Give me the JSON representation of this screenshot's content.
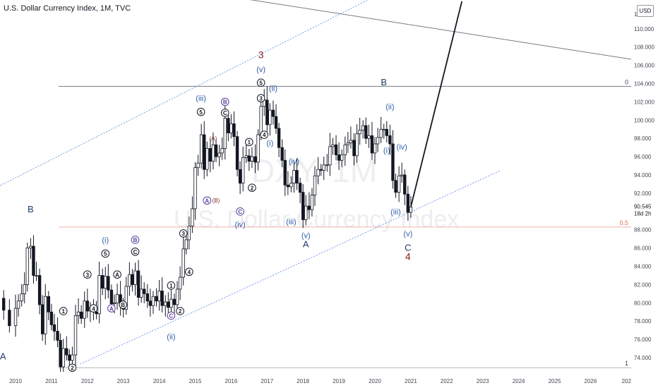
{
  "header": {
    "title": "U.S. Dollar Currency Index, 1M, TVC",
    "currency": "USD"
  },
  "watermark": {
    "symbol": "DXY, 1M",
    "name": "U.S. Dollar Currency Index"
  },
  "colors": {
    "up": "#131722",
    "wave": "#2f5ea8",
    "major": "#8b1a1a",
    "channel": "#6f9be8",
    "fib_zero": "#787b86",
    "fib_half": "#f0b3a8",
    "axis_text": "#434651",
    "price_tag": "#131722"
  },
  "chart_data": {
    "type": "candlestick",
    "x_axis": {
      "ticks": [
        "2010",
        "2011",
        "2012",
        "2013",
        "2014",
        "2015",
        "2016",
        "2017",
        "2018",
        "2019",
        "2020",
        "2021",
        "2022",
        "2023",
        "2024",
        "2025",
        "2026",
        "202"
      ],
      "range": [
        2010,
        2027
      ]
    },
    "y_axis": {
      "ticks": [
        "74.000",
        "76.000",
        "78.000",
        "80.000",
        "82.000",
        "84.000",
        "86.000",
        "88.000",
        "90.545",
        "92.000",
        "94.000",
        "96.000",
        "98.000",
        "100.000",
        "102.000",
        "104.000",
        "106.000",
        "108.000",
        "110.000"
      ],
      "range": [
        73,
        113
      ],
      "current_price": "90.545",
      "current_tag": "18d 2h",
      "top_tick": "1"
    },
    "fib_levels": [
      {
        "label": "0",
        "value": 103.7
      },
      {
        "label": "0.5",
        "value": 88.3
      },
      {
        "label": "1",
        "value": 72.9
      }
    ],
    "closes": [
      [
        2009.5,
        80.5
      ],
      [
        2009.67,
        79.2
      ],
      [
        2009.83,
        77.5
      ],
      [
        2010.0,
        79.4
      ],
      [
        2010.08,
        80.2
      ],
      [
        2010.17,
        81.0
      ],
      [
        2010.25,
        82.0
      ],
      [
        2010.33,
        86.0
      ],
      [
        2010.42,
        86.2
      ],
      [
        2010.5,
        83.0
      ],
      [
        2010.58,
        83.0
      ],
      [
        2010.67,
        79.8
      ],
      [
        2010.75,
        76.6
      ],
      [
        2010.83,
        80.7
      ],
      [
        2010.92,
        79.0
      ],
      [
        2011.0,
        77.6
      ],
      [
        2011.08,
        76.9
      ],
      [
        2011.17,
        75.9
      ],
      [
        2011.25,
        73.0
      ],
      [
        2011.33,
        75.0
      ],
      [
        2011.42,
        74.3
      ],
      [
        2011.5,
        73.7
      ],
      [
        2011.58,
        74.3
      ],
      [
        2011.67,
        78.6
      ],
      [
        2011.75,
        79.0
      ],
      [
        2011.83,
        78.3
      ],
      [
        2011.92,
        80.2
      ],
      [
        2012.0,
        79.1
      ],
      [
        2012.08,
        79.5
      ],
      [
        2012.17,
        79.0
      ],
      [
        2012.25,
        78.8
      ],
      [
        2012.33,
        83.0
      ],
      [
        2012.42,
        81.6
      ],
      [
        2012.5,
        82.9
      ],
      [
        2012.58,
        81.4
      ],
      [
        2012.67,
        79.9
      ],
      [
        2012.75,
        80.0
      ],
      [
        2012.83,
        80.9
      ],
      [
        2012.92,
        79.8
      ],
      [
        2013.0,
        79.3
      ],
      [
        2013.08,
        81.8
      ],
      [
        2013.17,
        83.1
      ],
      [
        2013.25,
        82.0
      ],
      [
        2013.33,
        83.5
      ],
      [
        2013.42,
        80.6
      ],
      [
        2013.5,
        81.5
      ],
      [
        2013.58,
        81.0
      ],
      [
        2013.67,
        80.2
      ],
      [
        2013.75,
        79.7
      ],
      [
        2013.83,
        80.7
      ],
      [
        2013.92,
        80.2
      ],
      [
        2014.0,
        81.3
      ],
      [
        2014.08,
        79.7
      ],
      [
        2014.17,
        80.1
      ],
      [
        2014.25,
        79.5
      ],
      [
        2014.33,
        80.4
      ],
      [
        2014.42,
        79.8
      ],
      [
        2014.5,
        81.5
      ],
      [
        2014.58,
        82.8
      ],
      [
        2014.67,
        85.9
      ],
      [
        2014.75,
        86.9
      ],
      [
        2014.83,
        88.4
      ],
      [
        2014.92,
        90.3
      ],
      [
        2015.0,
        94.8
      ],
      [
        2015.08,
        95.3
      ],
      [
        2015.17,
        98.4
      ],
      [
        2015.25,
        94.6
      ],
      [
        2015.33,
        96.9
      ],
      [
        2015.42,
        95.5
      ],
      [
        2015.5,
        97.3
      ],
      [
        2015.58,
        96.0
      ],
      [
        2015.67,
        96.4
      ],
      [
        2015.75,
        96.9
      ],
      [
        2015.83,
        100.2
      ],
      [
        2015.92,
        98.6
      ],
      [
        2016.0,
        99.6
      ],
      [
        2016.08,
        98.2
      ],
      [
        2016.17,
        94.6
      ],
      [
        2016.25,
        93.1
      ],
      [
        2016.33,
        95.9
      ],
      [
        2016.42,
        96.1
      ],
      [
        2016.5,
        95.5
      ],
      [
        2016.58,
        96.0
      ],
      [
        2016.67,
        95.4
      ],
      [
        2016.75,
        98.4
      ],
      [
        2016.83,
        101.5
      ],
      [
        2016.92,
        102.2
      ],
      [
        2017.0,
        99.5
      ],
      [
        2017.08,
        101.1
      ],
      [
        2017.17,
        100.4
      ],
      [
        2017.25,
        99.1
      ],
      [
        2017.33,
        97.0
      ],
      [
        2017.42,
        95.6
      ],
      [
        2017.5,
        92.9
      ],
      [
        2017.58,
        92.7
      ],
      [
        2017.67,
        93.1
      ],
      [
        2017.75,
        94.5
      ],
      [
        2017.83,
        93.1
      ],
      [
        2017.92,
        92.1
      ],
      [
        2018.0,
        89.1
      ],
      [
        2018.08,
        90.6
      ],
      [
        2018.17,
        90.2
      ],
      [
        2018.25,
        91.8
      ],
      [
        2018.33,
        93.9
      ],
      [
        2018.42,
        94.6
      ],
      [
        2018.5,
        94.5
      ],
      [
        2018.58,
        95.1
      ],
      [
        2018.67,
        95.1
      ],
      [
        2018.75,
        97.1
      ],
      [
        2018.83,
        97.3
      ],
      [
        2018.92,
        96.2
      ],
      [
        2019.0,
        95.6
      ],
      [
        2019.08,
        96.2
      ],
      [
        2019.17,
        97.3
      ],
      [
        2019.25,
        97.5
      ],
      [
        2019.33,
        97.8
      ],
      [
        2019.42,
        96.1
      ],
      [
        2019.5,
        98.5
      ],
      [
        2019.58,
        98.9
      ],
      [
        2019.67,
        99.4
      ],
      [
        2019.75,
        98.0
      ],
      [
        2019.83,
        98.3
      ],
      [
        2019.92,
        96.4
      ],
      [
        2020.0,
        97.4
      ],
      [
        2020.08,
        98.1
      ],
      [
        2020.17,
        99.0
      ],
      [
        2020.25,
        99.0
      ],
      [
        2020.33,
        98.3
      ],
      [
        2020.42,
        97.4
      ],
      [
        2020.5,
        93.4
      ],
      [
        2020.58,
        92.1
      ],
      [
        2020.67,
        93.9
      ],
      [
        2020.75,
        94.0
      ],
      [
        2020.83,
        91.9
      ],
      [
        2020.92,
        89.9
      ],
      [
        2021.0,
        90.5
      ]
    ],
    "projection": [
      [
        2021.0,
        90.5
      ],
      [
        2022.42,
        113.0
      ]
    ],
    "annotations": [
      {
        "text": "A",
        "x": 2009.65,
        "y": 74.1,
        "kind": "major"
      },
      {
        "text": "B",
        "x": 2010.42,
        "y": 90.2,
        "kind": "major"
      },
      {
        "text": "(i)",
        "x": 2012.5,
        "y": 86.9,
        "kind": "wave"
      },
      {
        "text": "5",
        "x": 2012.5,
        "y": 85.4,
        "kind": "circle"
      },
      {
        "text": "3",
        "x": 2012.0,
        "y": 83.1,
        "kind": "circle"
      },
      {
        "text": "A",
        "x": 2012.83,
        "y": 83.1,
        "kind": "circle"
      },
      {
        "text": "4",
        "x": 2012.17,
        "y": 79.4,
        "kind": "circle"
      },
      {
        "text": "A",
        "x": 2012.67,
        "y": 79.4,
        "kind": "circle-purple"
      },
      {
        "text": "B",
        "x": 2012.99,
        "y": 79.8,
        "kind": "circle"
      },
      {
        "text": "B",
        "x": 2013.33,
        "y": 86.9,
        "kind": "circle-purple"
      },
      {
        "text": "C",
        "x": 2013.33,
        "y": 85.6,
        "kind": "circle"
      },
      {
        "text": "1",
        "x": 2011.33,
        "y": 79.1,
        "kind": "circle"
      },
      {
        "text": "2",
        "x": 2011.58,
        "y": 72.9,
        "kind": "circle"
      },
      {
        "text": "1",
        "x": 2014.33,
        "y": 81.9,
        "kind": "circle"
      },
      {
        "text": "2",
        "x": 2014.58,
        "y": 79.1,
        "kind": "circle"
      },
      {
        "text": "C",
        "x": 2014.33,
        "y": 78.6,
        "kind": "circle-purple"
      },
      {
        "text": "(ii)",
        "x": 2014.33,
        "y": 76.3,
        "kind": "wave"
      },
      {
        "text": "3",
        "x": 2014.67,
        "y": 87.6,
        "kind": "circle"
      },
      {
        "text": "4",
        "x": 2014.83,
        "y": 83.4,
        "kind": "circle"
      },
      {
        "text": "(iii)",
        "x": 2015.16,
        "y": 102.4,
        "kind": "wave"
      },
      {
        "text": "5",
        "x": 2015.16,
        "y": 100.9,
        "kind": "circle"
      },
      {
        "text": "(A)",
        "x": 2015.5,
        "y": 98.1,
        "kind": "small"
      },
      {
        "text": "B",
        "x": 2015.83,
        "y": 102.0,
        "kind": "circle-purple"
      },
      {
        "text": "C",
        "x": 2015.83,
        "y": 100.8,
        "kind": "circle"
      },
      {
        "text": "A",
        "x": 2015.33,
        "y": 91.2,
        "kind": "circle-purple"
      },
      {
        "text": "(B)",
        "x": 2015.58,
        "y": 91.3,
        "kind": "small"
      },
      {
        "text": "C",
        "x": 2016.25,
        "y": 90.0,
        "kind": "circle-purple"
      },
      {
        "text": "(iv)",
        "x": 2016.25,
        "y": 88.6,
        "kind": "wave"
      },
      {
        "text": "1",
        "x": 2016.5,
        "y": 97.6,
        "kind": "circle"
      },
      {
        "text": "2",
        "x": 2016.58,
        "y": 92.6,
        "kind": "circle"
      },
      {
        "text": "3",
        "x": 2016.83,
        "y": 102.4,
        "kind": "circle"
      },
      {
        "text": "4",
        "x": 2016.92,
        "y": 98.4,
        "kind": "circle"
      },
      {
        "text": "(i)",
        "x": 2017.08,
        "y": 97.5,
        "kind": "wave"
      },
      {
        "text": "(ii)",
        "x": 2017.17,
        "y": 103.5,
        "kind": "wave"
      },
      {
        "text": "5",
        "x": 2016.83,
        "y": 104.1,
        "kind": "circle"
      },
      {
        "text": "(v)",
        "x": 2016.83,
        "y": 105.6,
        "kind": "wave"
      },
      {
        "text": "3",
        "x": 2016.83,
        "y": 107.1,
        "kind": "major-red"
      },
      {
        "text": "(iv)",
        "x": 2017.75,
        "y": 95.5,
        "kind": "wave"
      },
      {
        "text": "(iii)",
        "x": 2017.67,
        "y": 88.9,
        "kind": "wave"
      },
      {
        "text": "(v)",
        "x": 2018.08,
        "y": 87.4,
        "kind": "wave"
      },
      {
        "text": "A",
        "x": 2018.08,
        "y": 86.4,
        "kind": "major"
      },
      {
        "text": "B",
        "x": 2020.25,
        "y": 104.1,
        "kind": "major"
      },
      {
        "text": "(ii)",
        "x": 2020.42,
        "y": 101.5,
        "kind": "wave"
      },
      {
        "text": "(i)",
        "x": 2020.33,
        "y": 96.7,
        "kind": "wave"
      },
      {
        "text": "(iv)",
        "x": 2020.75,
        "y": 97.1,
        "kind": "wave"
      },
      {
        "text": "(iii)",
        "x": 2020.58,
        "y": 90.0,
        "kind": "wave"
      },
      {
        "text": "(v)",
        "x": 2020.92,
        "y": 87.6,
        "kind": "wave"
      },
      {
        "text": "C",
        "x": 2020.92,
        "y": 86.0,
        "kind": "major"
      },
      {
        "text": "4",
        "x": 2020.92,
        "y": 85.0,
        "kind": "major-red"
      }
    ]
  }
}
